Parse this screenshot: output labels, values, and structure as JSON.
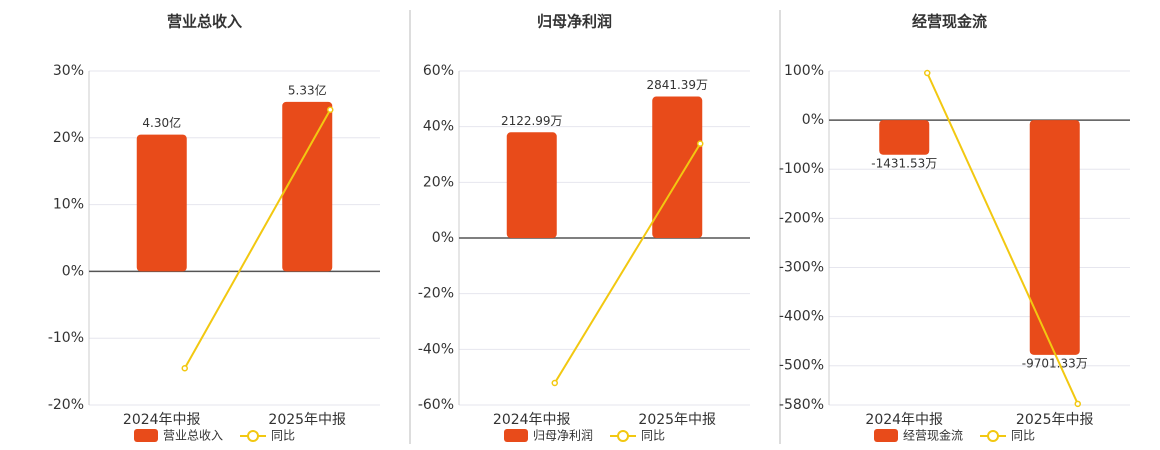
{
  "chart_data": [
    {
      "type": "bar",
      "title": "营业总收入",
      "categories": [
        "2024年中报",
        "2025年中报"
      ],
      "series": [
        {
          "name": "营业总收入",
          "color": "#e84b1a",
          "type": "bar",
          "axis": "y2",
          "values": [
            4.3,
            5.33
          ],
          "value_labels": [
            "4.30亿",
            "5.33亿"
          ]
        },
        {
          "name": "同比",
          "color": "#f2c811",
          "type": "line",
          "values": [
            -14.5,
            24.2
          ]
        }
      ],
      "ylim": [
        -20,
        30
      ],
      "yticks": [
        {
          "value": -20,
          "label": "-20%"
        },
        {
          "value": -10,
          "label": "-10%"
        },
        {
          "value": 0,
          "label": "0%"
        },
        {
          "value": 10,
          "label": "10%"
        },
        {
          "value": 20,
          "label": "20%"
        },
        {
          "value": 30,
          "label": "30%"
        }
      ],
      "y2lim": [
        -4.2,
        6.3
      ],
      "grid": true
    },
    {
      "type": "bar",
      "title": "归母净利润",
      "categories": [
        "2024年中报",
        "2025年中报"
      ],
      "series": [
        {
          "name": "归母净利润",
          "color": "#e84b1a",
          "type": "bar",
          "axis": "y2",
          "values": [
            2122.99,
            2841.39
          ],
          "value_labels": [
            "2122.99万",
            "2841.39万"
          ]
        },
        {
          "name": "同比",
          "color": "#f2c811",
          "type": "line",
          "values": [
            -52.1,
            33.9
          ]
        }
      ],
      "ylim": [
        -60,
        60
      ],
      "yticks": [
        {
          "value": -60,
          "label": "-60%"
        },
        {
          "value": -40,
          "label": "-40%"
        },
        {
          "value": -20,
          "label": "-20%"
        },
        {
          "value": 0,
          "label": "0%"
        },
        {
          "value": 20,
          "label": "20%"
        },
        {
          "value": 40,
          "label": "40%"
        },
        {
          "value": 60,
          "label": "60%"
        }
      ],
      "y2lim": [
        -3354,
        3354
      ],
      "grid": true
    },
    {
      "type": "bar",
      "title": "经营现金流",
      "categories": [
        "2024年中报",
        "2025年中报"
      ],
      "series": [
        {
          "name": "经营现金流",
          "color": "#e84b1a",
          "type": "bar",
          "axis": "y2",
          "values": [
            -1431.53,
            -9701.33
          ],
          "value_labels": [
            "-1431.53万",
            "-9701.33万"
          ]
        },
        {
          "name": "同比",
          "color": "#f2c811",
          "type": "line",
          "values": [
            95.9,
            -577.6
          ]
        }
      ],
      "ylim": [
        -580,
        100
      ],
      "yticks": [
        {
          "value": -580,
          "label": "-580%"
        },
        {
          "value": -500,
          "label": "-500%"
        },
        {
          "value": -400,
          "label": "-400%"
        },
        {
          "value": -300,
          "label": "-300%"
        },
        {
          "value": -200,
          "label": "-200%"
        },
        {
          "value": -100,
          "label": "-100%"
        },
        {
          "value": 0,
          "label": "0%"
        },
        {
          "value": 100,
          "label": "100%"
        }
      ],
      "y2lim": [
        -11774,
        2030
      ],
      "grid": true
    }
  ]
}
